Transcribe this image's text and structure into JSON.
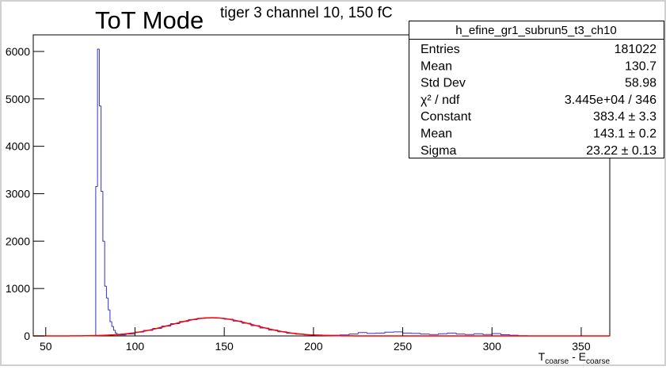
{
  "chart_data": {
    "type": "histogram",
    "annotation": "ToT Mode",
    "title": "tiger 3 channel 10, 150 fC",
    "x_label": [
      "T",
      "coarse",
      " - E",
      "coarse"
    ],
    "color": "#3232c8",
    "fit_color": "#ff0000",
    "bins": [
      78,
      79,
      80,
      81,
      82,
      83,
      84,
      85,
      86,
      87,
      88,
      89,
      90,
      95,
      100,
      105,
      110,
      115,
      120,
      125,
      130,
      135,
      140,
      145,
      150,
      155,
      160,
      165,
      170,
      175,
      180,
      185,
      190,
      195,
      200,
      205,
      210,
      215,
      220,
      225,
      230,
      235,
      240,
      245,
      250,
      255,
      260,
      265,
      270,
      275,
      280,
      285,
      290,
      295,
      300,
      305,
      310,
      315,
      320,
      325
    ],
    "counts": [
      3150,
      6050,
      4850,
      3050,
      2000,
      1050,
      800,
      550,
      300,
      200,
      120,
      60,
      20,
      40,
      81,
      116,
      159,
      207,
      258,
      305,
      345,
      372,
      383,
      376,
      352,
      314,
      267,
      217,
      168,
      124,
      88,
      59,
      38,
      23,
      20,
      15,
      15,
      20,
      40,
      70,
      55,
      60,
      80,
      85,
      60,
      55,
      40,
      30,
      45,
      60,
      40,
      30,
      45,
      30,
      50,
      25,
      15,
      5,
      0
    ],
    "xlim": [
      43,
      366
    ],
    "ylim": [
      0,
      6350
    ],
    "xticks": [
      50,
      100,
      150,
      200,
      250,
      300,
      350
    ],
    "yticks": [
      0,
      1000,
      2000,
      3000,
      4000,
      5000,
      6000
    ],
    "stats": {
      "title": "h_efine_gr1_subrun5_t3_ch10",
      "rows": [
        {
          "name": "Entries",
          "label": "181022"
        },
        {
          "name": "Mean",
          "label": "130.7"
        },
        {
          "name": "Std Dev",
          "label": "58.98"
        },
        {
          "name": "χ² / ndf",
          "label": "3.445e+04 / 346"
        },
        {
          "name": "Constant",
          "value": 383.4,
          "error": 3.3,
          "label": "383.4 ± 3.3"
        },
        {
          "name": "Mean",
          "value": 143.1,
          "error": 0.2,
          "label": "143.1 ± 0.2"
        },
        {
          "name": "Sigma",
          "value": 23.22,
          "error": 0.13,
          "label": "23.22 ± 0.13"
        }
      ]
    }
  }
}
